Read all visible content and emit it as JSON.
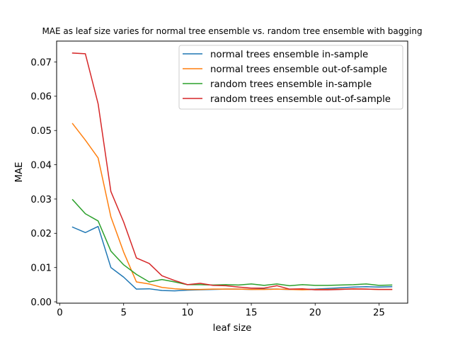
{
  "chart_data": {
    "type": "line",
    "title": "MAE as leaf size varies for normal tree ensemble vs. random tree ensemble with bagging",
    "xlabel": "leaf size",
    "ylabel": "MAE",
    "xlim": [
      -0.25,
      27.25
    ],
    "ylim": [
      -0.0004,
      0.0761
    ],
    "xticks": [
      0,
      5,
      10,
      15,
      20,
      25
    ],
    "xtick_labels": [
      "0",
      "5",
      "10",
      "15",
      "20",
      "25"
    ],
    "yticks": [
      0.0,
      0.01,
      0.02,
      0.03,
      0.04,
      0.05,
      0.06,
      0.07
    ],
    "ytick_labels": [
      "0.00",
      "0.01",
      "0.02",
      "0.03",
      "0.04",
      "0.05",
      "0.06",
      "0.07"
    ],
    "grid": false,
    "legend_position": "top-right",
    "x": [
      1,
      2,
      3,
      4,
      5,
      6,
      7,
      8,
      9,
      10,
      11,
      12,
      13,
      14,
      15,
      16,
      17,
      18,
      19,
      20,
      21,
      22,
      23,
      24,
      25,
      26
    ],
    "series": [
      {
        "name": "normal trees ensemble in-sample",
        "color": "#1f77b4",
        "values": [
          0.0218,
          0.0202,
          0.022,
          0.01,
          0.0072,
          0.0037,
          0.0038,
          0.0033,
          0.0032,
          0.0034,
          0.0035,
          0.0036,
          0.0037,
          0.0037,
          0.0036,
          0.0037,
          0.0037,
          0.0036,
          0.0036,
          0.0037,
          0.0039,
          0.0041,
          0.0043,
          0.0044,
          0.0043,
          0.0044
        ]
      },
      {
        "name": "normal trees ensemble out-of-sample",
        "color": "#ff7f0e",
        "values": [
          0.052,
          0.0472,
          0.042,
          0.0248,
          0.0145,
          0.0058,
          0.0052,
          0.0042,
          0.0038,
          0.0036,
          0.0036,
          0.0037,
          0.0037,
          0.0037,
          0.0036,
          0.0036,
          0.0037,
          0.0036,
          0.0035,
          0.0036,
          0.0036,
          0.0037,
          0.0037,
          0.0037,
          0.0036,
          0.0036
        ]
      },
      {
        "name": "random trees ensemble in-sample",
        "color": "#2ca02c",
        "values": [
          0.0298,
          0.0257,
          0.0236,
          0.0148,
          0.0108,
          0.008,
          0.0058,
          0.0065,
          0.0058,
          0.005,
          0.005,
          0.0049,
          0.005,
          0.0049,
          0.0052,
          0.0048,
          0.0052,
          0.0047,
          0.005,
          0.0048,
          0.0048,
          0.0049,
          0.005,
          0.0052,
          0.0048,
          0.0049
        ]
      },
      {
        "name": "random trees ensemble out-of-sample",
        "color": "#d62728",
        "values": [
          0.0726,
          0.0724,
          0.0578,
          0.0322,
          0.0233,
          0.0128,
          0.0112,
          0.0076,
          0.0062,
          0.005,
          0.0054,
          0.0048,
          0.0047,
          0.0043,
          0.004,
          0.004,
          0.0047,
          0.0037,
          0.0038,
          0.0035,
          0.0035,
          0.0036,
          0.0038,
          0.0037,
          0.0036,
          0.0036
        ]
      }
    ]
  }
}
